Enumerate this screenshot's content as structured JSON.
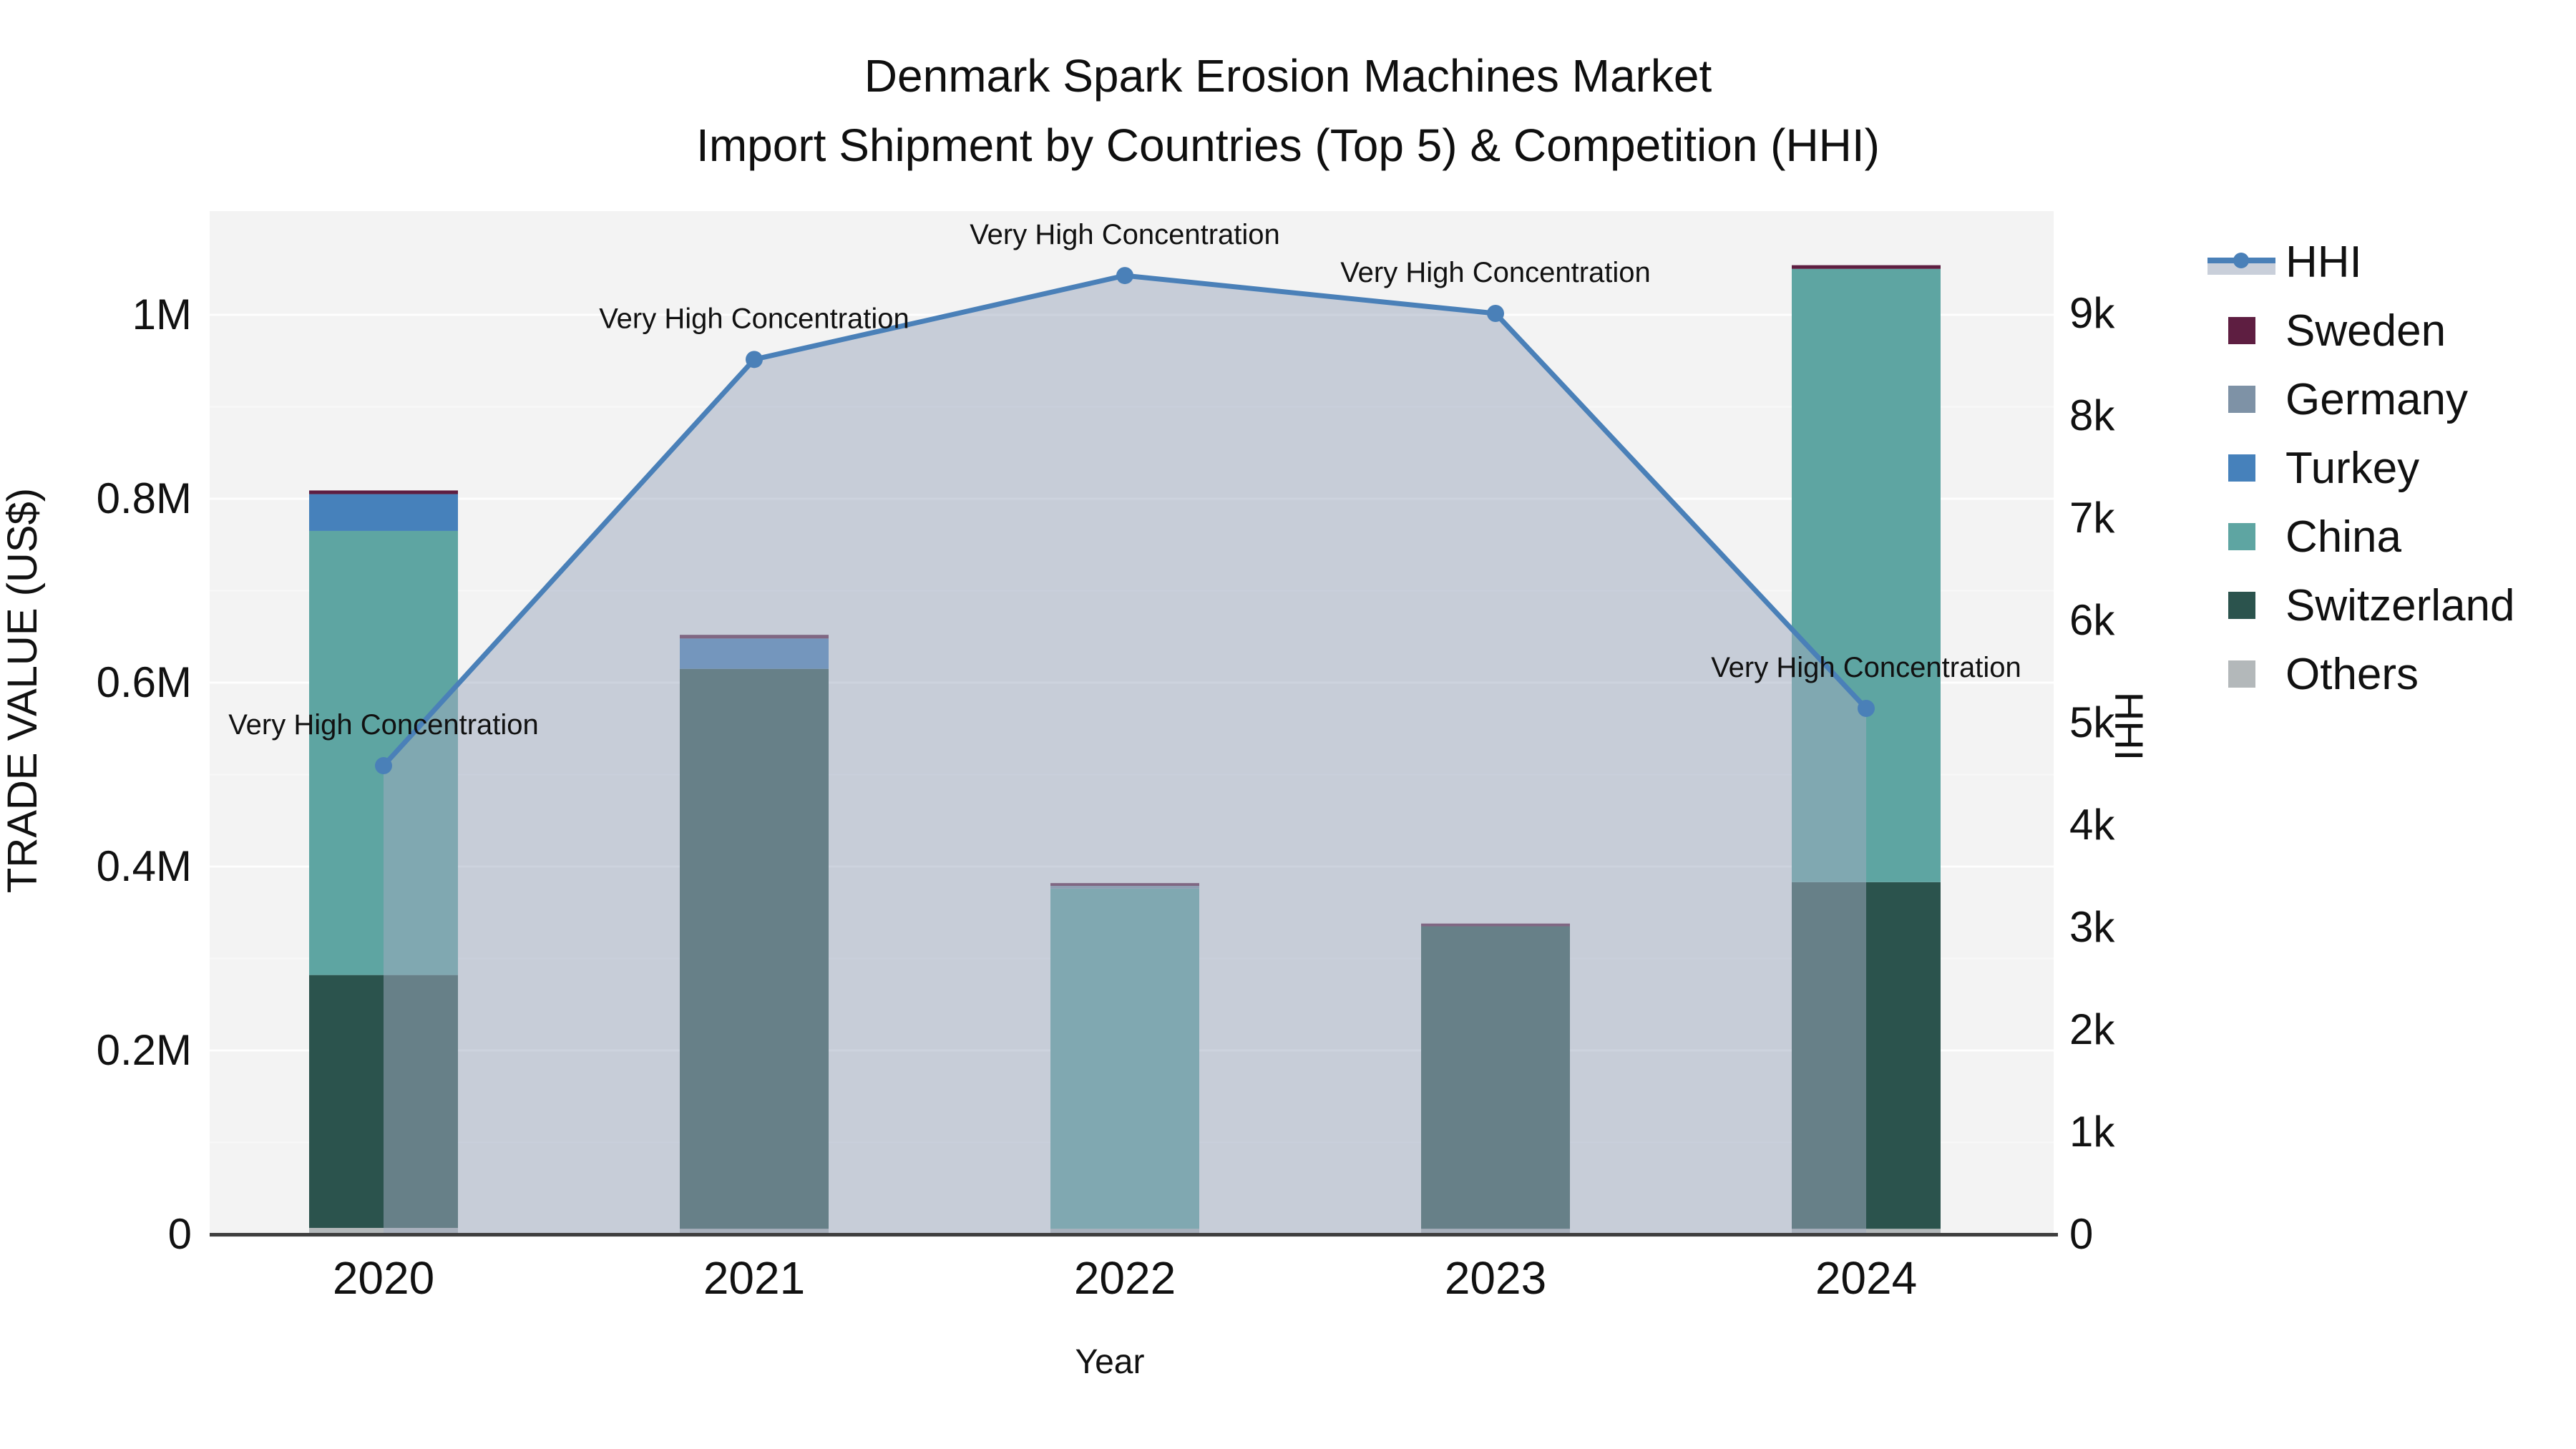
{
  "title": {
    "line1": "Denmark Spark Erosion Machines Market",
    "line2": "Import Shipment by Countries (Top 5) & Competition (HHI)"
  },
  "axes": {
    "left": {
      "title": "TRADE VALUE (US$)",
      "ticks": [
        "0",
        "0.2M",
        "0.4M",
        "0.6M",
        "0.8M",
        "1M"
      ]
    },
    "right": {
      "title": "HHI",
      "ticks": [
        "0",
        "1k",
        "2k",
        "3k",
        "4k",
        "5k",
        "6k",
        "7k",
        "8k",
        "9k"
      ]
    },
    "x": {
      "title": "Year",
      "ticks": [
        "2020",
        "2021",
        "2022",
        "2023",
        "2024"
      ]
    }
  },
  "legend": {
    "items": [
      {
        "label": "HHI",
        "type": "line",
        "color": "#4a80b8",
        "band": "#c9cfda"
      },
      {
        "label": "Sweden",
        "type": "square",
        "color": "#5e1e41"
      },
      {
        "label": "Germany",
        "type": "square",
        "color": "#7e92a6"
      },
      {
        "label": "Turkey",
        "type": "square",
        "color": "#4681bb"
      },
      {
        "label": "China",
        "type": "square",
        "color": "#5ea5a2"
      },
      {
        "label": "Switzerland",
        "type": "square",
        "color": "#2b534d"
      },
      {
        "label": "Others",
        "type": "square",
        "color": "#b3b8ba"
      }
    ]
  },
  "annotation_text": "Very High Concentration",
  "chart_data": {
    "type": "bar+line",
    "title": "Denmark Spark Erosion Machines Market — Import Shipment by Countries (Top 5) & Competition (HHI)",
    "categories": [
      "2020",
      "2021",
      "2022",
      "2023",
      "2024"
    ],
    "stack_order_bottom_to_top": [
      "Others",
      "Switzerland",
      "China",
      "Turkey",
      "Germany",
      "Sweden"
    ],
    "series": [
      {
        "name": "Others",
        "color": "#b3b8ba",
        "values": [
          7000,
          6000,
          6000,
          6000,
          6000
        ]
      },
      {
        "name": "Switzerland",
        "color": "#2b534d",
        "values": [
          275000,
          609000,
          0,
          329000,
          377000
        ]
      },
      {
        "name": "China",
        "color": "#5ea5a2",
        "values": [
          483000,
          0,
          370000,
          0,
          667000
        ]
      },
      {
        "name": "Turkey",
        "color": "#4681bb",
        "values": [
          40000,
          33000,
          0,
          0,
          0
        ]
      },
      {
        "name": "Germany",
        "color": "#7e92a6",
        "values": [
          0,
          0,
          3000,
          0,
          0
        ]
      },
      {
        "name": "Sweden",
        "color": "#5e1e41",
        "values": [
          4000,
          4000,
          3000,
          3000,
          4000
        ]
      }
    ],
    "line_series": {
      "name": "HHI",
      "color": "#4a80b8",
      "area_fill": "rgba(159,171,191,0.52)",
      "values": [
        4580,
        8550,
        9370,
        9000,
        5140
      ],
      "axis": "right"
    },
    "annotations": [
      {
        "x": "2020",
        "text": "Very High Concentration"
      },
      {
        "x": "2021",
        "text": "Very High Concentration"
      },
      {
        "x": "2022",
        "text": "Very High Concentration"
      },
      {
        "x": "2023",
        "text": "Very High Concentration"
      },
      {
        "x": "2024",
        "text": "Very High Concentration"
      }
    ],
    "xlabel": "Year",
    "ylabel_left": "TRADE VALUE (US$)",
    "ylabel_right": "HHI",
    "ylim_left": [
      0,
      1113000
    ],
    "ylim_right": [
      0,
      10000
    ],
    "grid": true,
    "legend_position": "right",
    "plot_bg": "#f3f3f3",
    "grid_color": "#ffffff",
    "axisline_color": "#3f3f3f"
  }
}
